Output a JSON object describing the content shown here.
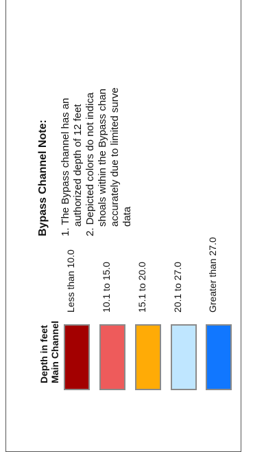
{
  "legend": {
    "depth_title": "Depth in feet",
    "main_channel": "Main Channel",
    "ranges": [
      {
        "label": "Less than 10.0",
        "color": "#a30000"
      },
      {
        "label": "10.1 to 15.0",
        "color": "#ee5b5b"
      },
      {
        "label": "15.1 to 20.0",
        "color": "#ffab06"
      },
      {
        "label": "20.1 to 27.0",
        "color": "#bfe6ff"
      },
      {
        "label": "Greater than 27.0",
        "color": "#1177ff"
      }
    ]
  },
  "bypass_note": {
    "title": "Bypass Channel Note:",
    "item1_line1": "1. The Bypass channel has an",
    "item1_line2": "authorized depth of 12 feet",
    "item2_line1": "2. Depicted colors do not indica",
    "item2_line2": "shoals within the Bypass chan",
    "item2_line3": "accurately due to limited surve",
    "item2_line4": "data"
  }
}
